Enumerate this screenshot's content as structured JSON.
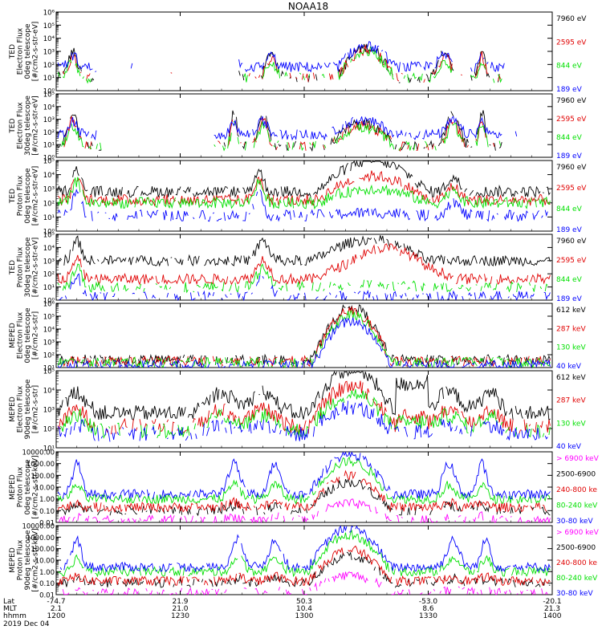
{
  "title": "NOAA18",
  "date": "2019 Dec 04",
  "colors": {
    "black": "#000000",
    "red": "#e00000",
    "green": "#00e000",
    "blue": "#0000ff",
    "magenta": "#ff00ff"
  },
  "x_axis": {
    "rows": [
      {
        "label": "Lat",
        "values": [
          "-74.7",
          "21.9",
          "50.3",
          "-53.0",
          "-20.1"
        ]
      },
      {
        "label": "MLT",
        "values": [
          "2.1",
          "21.0",
          "10.4",
          "8.6",
          "21.3"
        ]
      },
      {
        "label": "hhmm",
        "values": [
          "1200",
          "1230",
          "1300",
          "1330",
          "1400"
        ]
      }
    ],
    "range_minutes": [
      0,
      120
    ],
    "tick_minutes": [
      0,
      30,
      60,
      90,
      120
    ]
  },
  "chart_data": [
    {
      "type": "line",
      "scale": "log",
      "ylim": [
        1,
        1000000
      ],
      "ylabel": [
        "TED",
        "Electron Flux",
        "0deg telescope",
        "[#/cm2-s-str-eV]"
      ],
      "tick_labels": [
        "10⁰",
        "10¹",
        "10²",
        "10³",
        "10⁴",
        "10⁵",
        "10⁶"
      ],
      "series": [
        {
          "name": "7960 eV",
          "color": "#000000"
        },
        {
          "name": "2595 eV",
          "color": "#e00000"
        },
        {
          "name": "844 eV",
          "color": "#00e000"
        },
        {
          "name": "189 eV",
          "color": "#0000ff"
        }
      ]
    },
    {
      "type": "line",
      "scale": "log",
      "ylim": [
        1,
        100000
      ],
      "ylabel": [
        "TED",
        "Electron Flux",
        "30deg telescope",
        "[#/cm2-s-str-eV]"
      ],
      "tick_labels": [
        "10⁰",
        "10¹",
        "10²",
        "10³",
        "10⁴",
        "10⁵"
      ],
      "series": [
        {
          "name": "7960 eV",
          "color": "#000000"
        },
        {
          "name": "2595 eV",
          "color": "#e00000"
        },
        {
          "name": "844 eV",
          "color": "#00e000"
        },
        {
          "name": "189 eV",
          "color": "#0000ff"
        }
      ]
    },
    {
      "type": "line",
      "scale": "log",
      "ylim": [
        1,
        100000
      ],
      "ylabel": [
        "TED",
        "Proton Flux",
        "0deg telescope",
        "[#/cm2-s-str-eV]"
      ],
      "tick_labels": [
        "10⁰",
        "10¹",
        "10²",
        "10³",
        "10⁴",
        "10⁵"
      ],
      "series": [
        {
          "name": "7960 eV",
          "color": "#000000"
        },
        {
          "name": "2595 eV",
          "color": "#e00000"
        },
        {
          "name": "844 eV",
          "color": "#00e000"
        },
        {
          "name": "189 eV",
          "color": "#0000ff"
        }
      ]
    },
    {
      "type": "line",
      "scale": "log",
      "ylim": [
        1,
        100000
      ],
      "ylabel": [
        "TED",
        "Proton Flux",
        "30deg telescope",
        "[#/cm2-s-str-eV]"
      ],
      "tick_labels": [
        "10⁰",
        "10¹",
        "10²",
        "10³",
        "10⁴",
        "10⁵"
      ],
      "series": [
        {
          "name": "7960 eV",
          "color": "#000000"
        },
        {
          "name": "2595 eV",
          "color": "#e00000"
        },
        {
          "name": "844 eV",
          "color": "#00e000"
        },
        {
          "name": "189 eV",
          "color": "#0000ff"
        }
      ]
    },
    {
      "type": "line",
      "scale": "log",
      "ylim": [
        10,
        1000000
      ],
      "ylabel": [
        "MEPED",
        "Electron Flux",
        "0deg telescope",
        "[#/cm2-s-str]"
      ],
      "tick_labels": [
        "10¹",
        "10²",
        "10³",
        "10⁴",
        "10⁵",
        "10⁶"
      ],
      "series": [
        {
          "name": "612 keV",
          "color": "#000000"
        },
        {
          "name": "287 keV",
          "color": "#e00000"
        },
        {
          "name": "130 keV",
          "color": "#00e000"
        },
        {
          "name": "40 keV",
          "color": "#0000ff"
        }
      ]
    },
    {
      "type": "line",
      "scale": "log",
      "ylim": [
        10,
        100000
      ],
      "ylabel": [
        "MEPED",
        "Electron Flux",
        "90deg telescope",
        "[#/cm2-s-str]"
      ],
      "tick_labels": [
        "10¹",
        "10²",
        "10³",
        "10⁴",
        "10⁵"
      ],
      "series": [
        {
          "name": "612 keV",
          "color": "#000000"
        },
        {
          "name": "287 keV",
          "color": "#e00000"
        },
        {
          "name": "130 keV",
          "color": "#00e000"
        },
        {
          "name": "40 keV",
          "color": "#0000ff"
        }
      ]
    },
    {
      "type": "line",
      "scale": "log",
      "ylim": [
        0.01,
        10000
      ],
      "ylabel": [
        "MEPED",
        "Proton Flux",
        "0deg telescope",
        "[#/cm2-s-str-keV]"
      ],
      "tick_labels": [
        "0.01",
        "0.10",
        "1.00",
        "10.00",
        "100.00",
        "1000.00",
        "10000.00"
      ],
      "series": [
        {
          "name": "> 6900 keV",
          "color": "#ff00ff"
        },
        {
          "name": "2500-6900",
          "color": "#000000"
        },
        {
          "name": "240-800 ke",
          "color": "#e00000"
        },
        {
          "name": "80-240 keV",
          "color": "#00e000"
        },
        {
          "name": "30-80 keV",
          "color": "#0000ff"
        }
      ]
    },
    {
      "type": "line",
      "scale": "log",
      "ylim": [
        0.01,
        10000
      ],
      "ylabel": [
        "MEPED",
        "Proton Flux",
        "90deg telescope",
        "[#/cm2-s-str-keV]"
      ],
      "tick_labels": [
        "0.01",
        "0.10",
        "1.00",
        "10.00",
        "100.00",
        "1000.00",
        "10000.00"
      ],
      "series": [
        {
          "name": "> 6900 keV",
          "color": "#ff00ff"
        },
        {
          "name": "2500-6900",
          "color": "#000000"
        },
        {
          "name": "240-800 ke",
          "color": "#e00000"
        },
        {
          "name": "80-240 keV",
          "color": "#00e000"
        },
        {
          "name": "30-80 keV",
          "color": "#0000ff"
        }
      ]
    }
  ]
}
